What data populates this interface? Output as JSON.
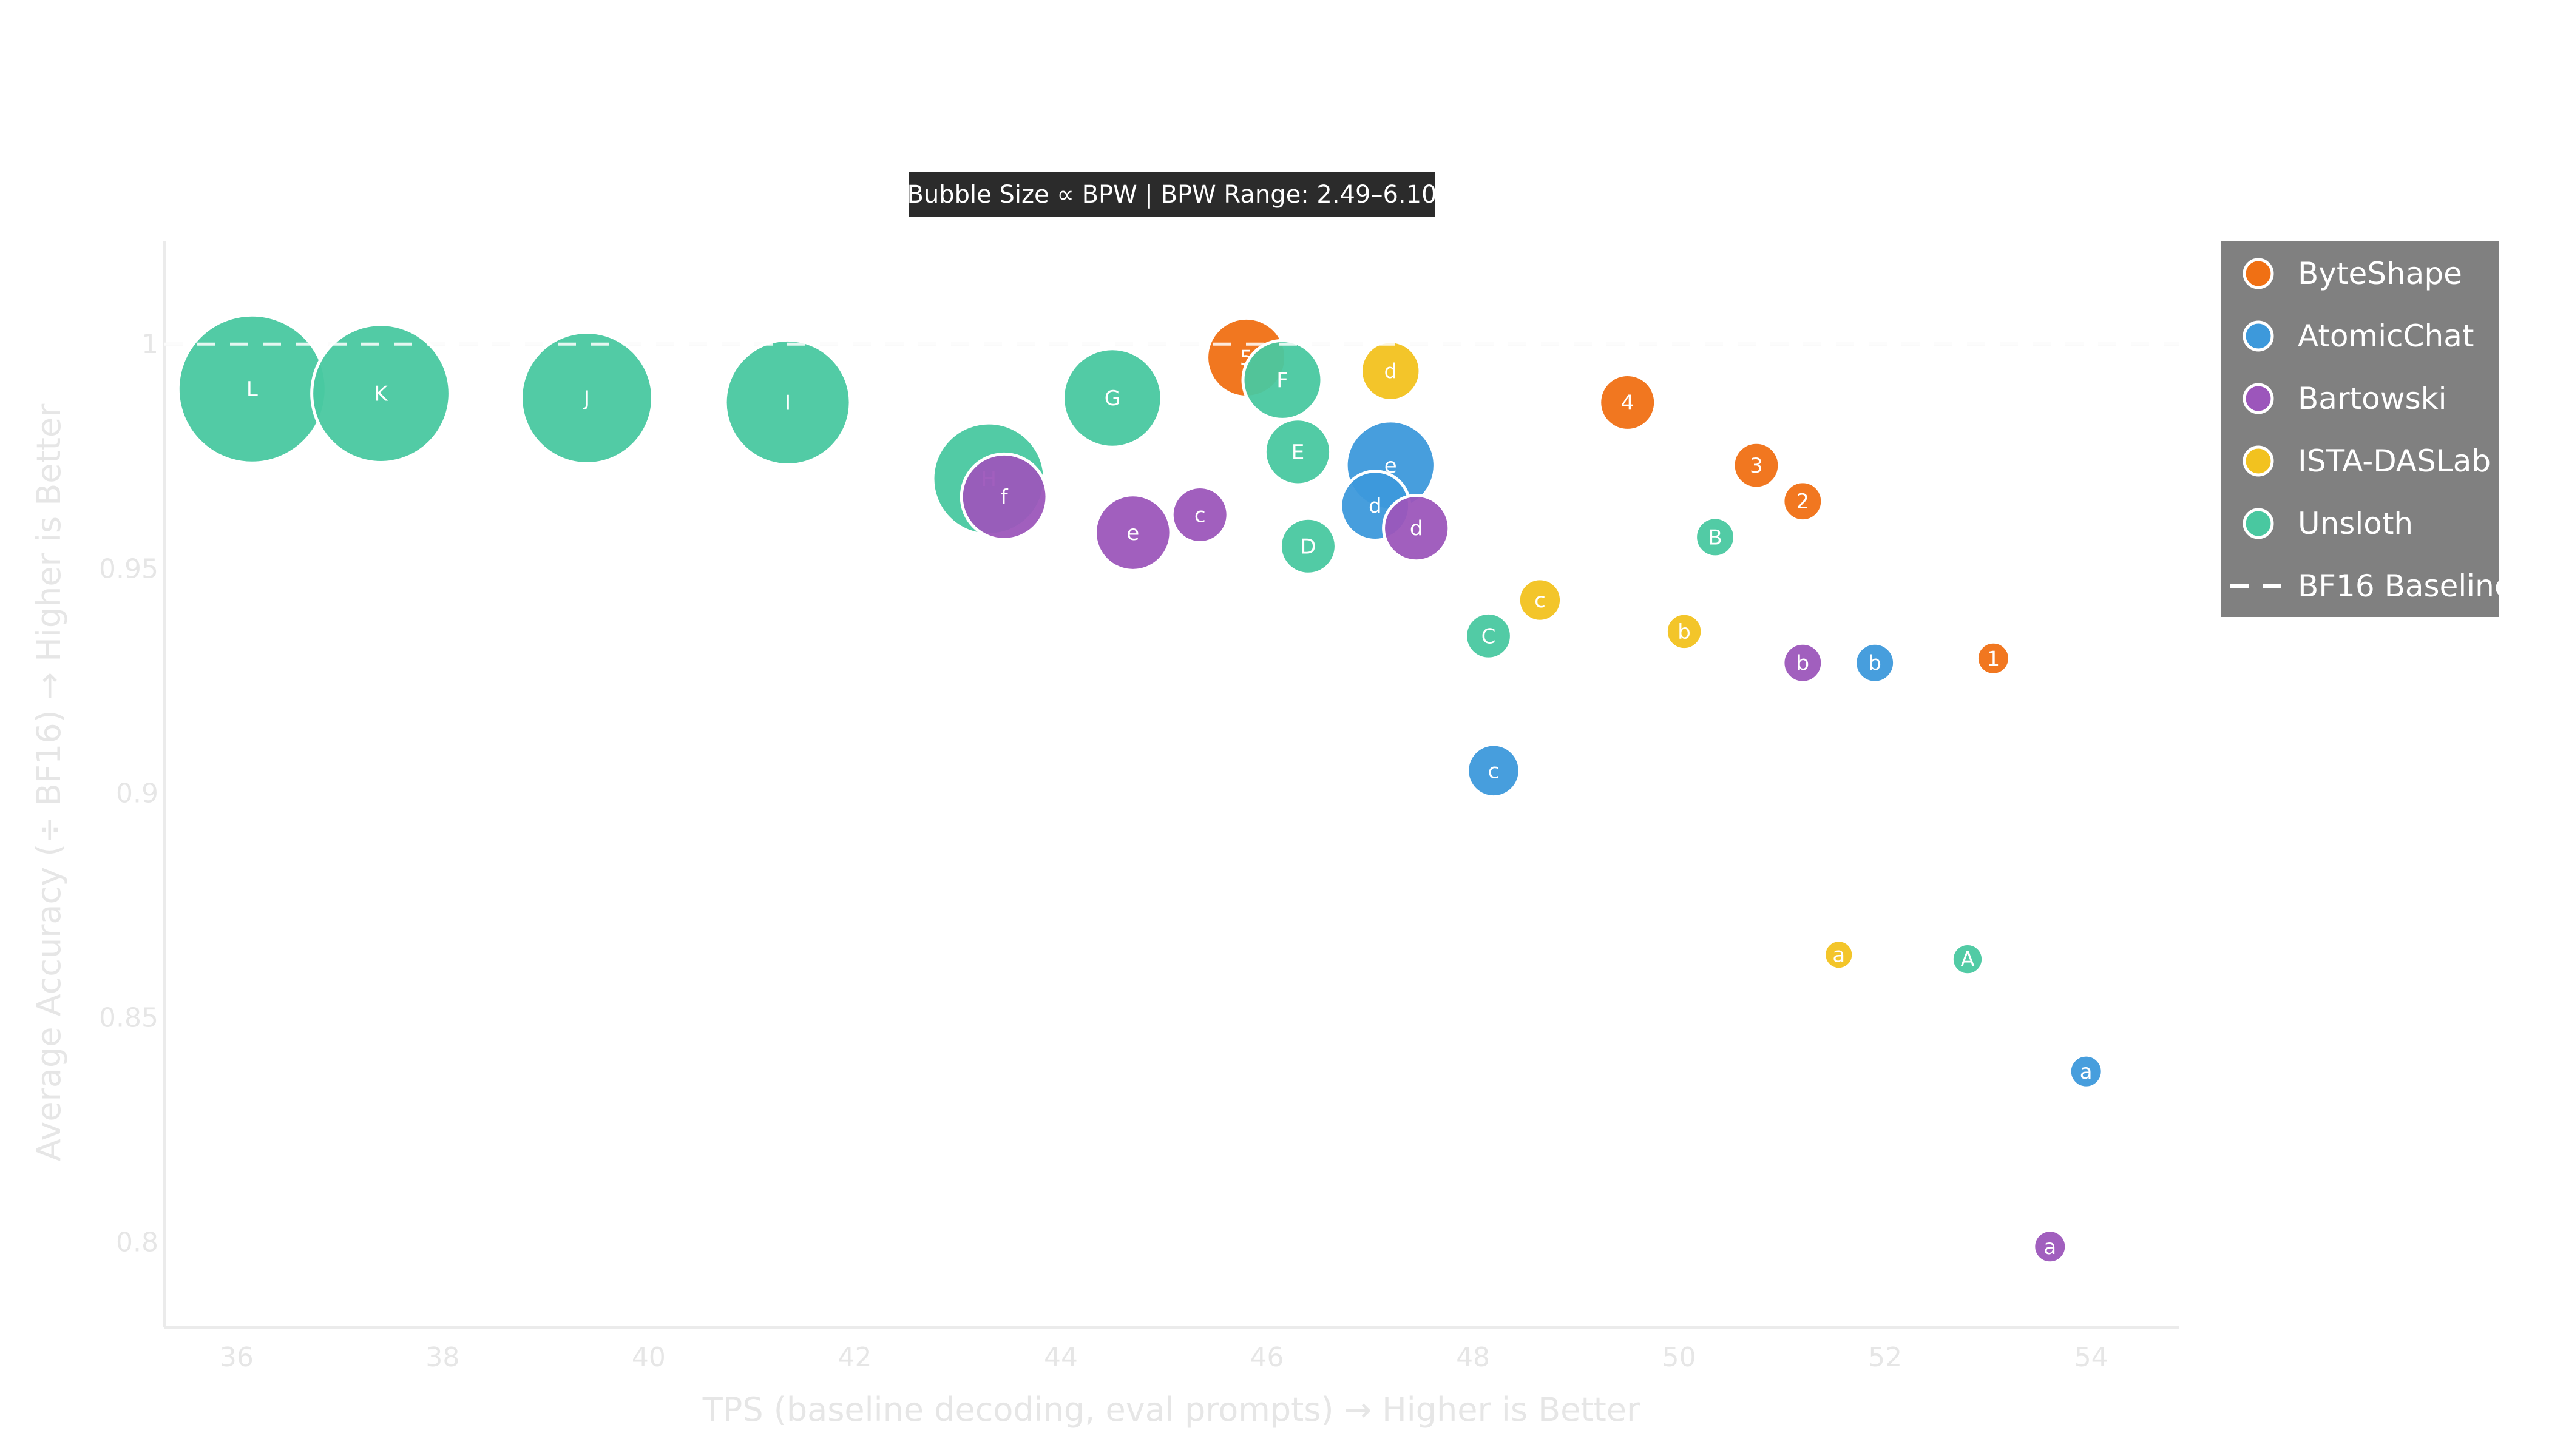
{
  "chart_data": {
    "type": "scatter",
    "annotation": "Bubble Size ∝ BPW | BPW Range: 2.49–6.10",
    "xlabel": "TPS (baseline decoding, eval prompts) → Higher is Better",
    "ylabel": "Average Accuracy (÷ BF16) → Higher is Better",
    "xlim": [
      35.3,
      54.85
    ],
    "ylim": [
      0.781,
      1.023
    ],
    "xticks": [
      36,
      38,
      40,
      42,
      44,
      46,
      48,
      50,
      52,
      54
    ],
    "yticks": [
      0.8,
      0.85,
      0.9,
      0.95,
      1
    ],
    "ytick_labels": [
      "0.8",
      "0.85",
      "0.9",
      "0.95",
      "1"
    ],
    "baseline": {
      "name": "BF16 Baseline",
      "y": 1.0
    },
    "legend_position": "top-right",
    "grid": false,
    "series": [
      {
        "name": "ByteShape",
        "color": "#f07014",
        "points": [
          {
            "label": "1",
            "x": 53.05,
            "y": 0.93,
            "bpw": 2.6
          },
          {
            "label": "2",
            "x": 51.2,
            "y": 0.965,
            "bpw": 2.8
          },
          {
            "label": "3",
            "x": 50.75,
            "y": 0.973,
            "bpw": 3.0
          },
          {
            "label": "4",
            "x": 49.5,
            "y": 0.987,
            "bpw": 3.3
          },
          {
            "label": "5",
            "x": 45.8,
            "y": 0.997,
            "bpw": 4.0
          }
        ]
      },
      {
        "name": "AtomicChat",
        "color": "#3d99db",
        "points": [
          {
            "label": "a",
            "x": 53.95,
            "y": 0.838,
            "bpw": 2.6
          },
          {
            "label": "b",
            "x": 51.9,
            "y": 0.929,
            "bpw": 2.8
          },
          {
            "label": "c",
            "x": 48.2,
            "y": 0.905,
            "bpw": 3.2
          },
          {
            "label": "d",
            "x": 47.05,
            "y": 0.964,
            "bpw": 3.7
          },
          {
            "label": "e",
            "x": 47.2,
            "y": 0.973,
            "bpw": 4.3
          }
        ]
      },
      {
        "name": "Bartowski",
        "color": "#9c56bb",
        "points": [
          {
            "label": "a",
            "x": 53.6,
            "y": 0.799,
            "bpw": 2.6
          },
          {
            "label": "b",
            "x": 51.2,
            "y": 0.929,
            "bpw": 2.8
          },
          {
            "label": "c",
            "x": 45.35,
            "y": 0.962,
            "bpw": 3.3
          },
          {
            "label": "d",
            "x": 47.45,
            "y": 0.959,
            "bpw": 3.6
          },
          {
            "label": "e",
            "x": 44.7,
            "y": 0.958,
            "bpw": 3.9
          },
          {
            "label": "f",
            "x": 43.45,
            "y": 0.966,
            "bpw": 4.2
          }
        ]
      },
      {
        "name": "ISTA-DASLab",
        "color": "#f2c21f",
        "points": [
          {
            "label": "a",
            "x": 51.55,
            "y": 0.864,
            "bpw": 2.49
          },
          {
            "label": "b",
            "x": 50.05,
            "y": 0.936,
            "bpw": 2.7
          },
          {
            "label": "c",
            "x": 48.65,
            "y": 0.943,
            "bpw": 2.9
          },
          {
            "label": "d",
            "x": 47.2,
            "y": 0.994,
            "bpw": 3.4
          }
        ]
      },
      {
        "name": "Unsloth",
        "color": "#49c8a0",
        "points": [
          {
            "label": "A",
            "x": 52.8,
            "y": 0.863,
            "bpw": 2.55
          },
          {
            "label": "B",
            "x": 50.35,
            "y": 0.957,
            "bpw": 2.8
          },
          {
            "label": "C",
            "x": 48.15,
            "y": 0.935,
            "bpw": 3.0
          },
          {
            "label": "D",
            "x": 46.4,
            "y": 0.955,
            "bpw": 3.3
          },
          {
            "label": "E",
            "x": 46.3,
            "y": 0.976,
            "bpw": 3.6
          },
          {
            "label": "F",
            "x": 46.15,
            "y": 0.992,
            "bpw": 4.0
          },
          {
            "label": "G",
            "x": 44.5,
            "y": 0.988,
            "bpw": 4.6
          },
          {
            "label": "H",
            "x": 43.3,
            "y": 0.97,
            "bpw": 5.0
          },
          {
            "label": "I",
            "x": 41.35,
            "y": 0.987,
            "bpw": 5.4
          },
          {
            "label": "J",
            "x": 39.4,
            "y": 0.988,
            "bpw": 5.6
          },
          {
            "label": "K",
            "x": 37.4,
            "y": 0.989,
            "bpw": 5.8
          },
          {
            "label": "L",
            "x": 36.15,
            "y": 0.99,
            "bpw": 6.1
          }
        ]
      }
    ]
  }
}
